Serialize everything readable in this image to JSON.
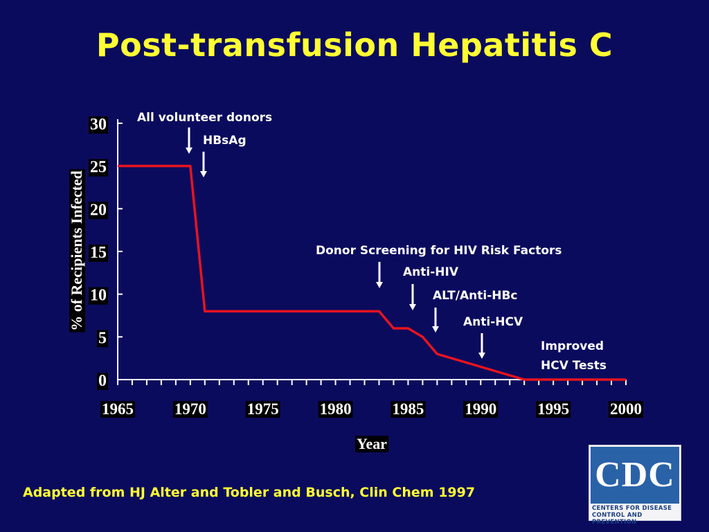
{
  "slide": {
    "title": "Post-transfusion Hepatitis C",
    "source": "Adapted from HJ Alter and Tobler and Busch, Clin Chem 1997"
  },
  "logo": {
    "letters": "CDC",
    "line1": "Centers for Disease",
    "line2": "Control and Prevention"
  },
  "colors": {
    "background": "#0b0b5e",
    "title": "#ffff33",
    "line": "#e8141e",
    "axis": "#ffffff",
    "label_box": "#000000"
  },
  "chart_data": {
    "type": "line",
    "title": "Post-transfusion Hepatitis C",
    "xlabel": "Year",
    "ylabel": "% of Recipients Infected",
    "xlim": [
      1965,
      2000
    ],
    "ylim": [
      0,
      30
    ],
    "xticks": [
      1965,
      1970,
      1975,
      1980,
      1985,
      1990,
      1995,
      2000
    ],
    "yticks": [
      0,
      5,
      10,
      15,
      20,
      25,
      30
    ],
    "grid": false,
    "series": [
      {
        "x": [
          1965,
          1970,
          1971,
          1983,
          1984,
          1985,
          1986,
          1987,
          1990,
          1993,
          2000
        ],
        "y": [
          25,
          25,
          8,
          8,
          6,
          6,
          5,
          3,
          1.5,
          0,
          0
        ]
      }
    ],
    "annotations": [
      {
        "lines": [
          "All volunteer donors"
        ],
        "year": 1970
      },
      {
        "lines": [
          "HBsAg"
        ],
        "year": 1971
      },
      {
        "lines": [
          "Donor Screening for HIV Risk Factors"
        ],
        "year": 1983
      },
      {
        "lines": [
          "Anti-HIV"
        ],
        "year": 1985.5
      },
      {
        "lines": [
          "ALT/Anti-HBc"
        ],
        "year": 1987
      },
      {
        "lines": [
          "Anti-HCV"
        ],
        "year": 1990
      },
      {
        "lines": [
          "Improved",
          "HCV Tests"
        ],
        "year": null
      }
    ]
  }
}
